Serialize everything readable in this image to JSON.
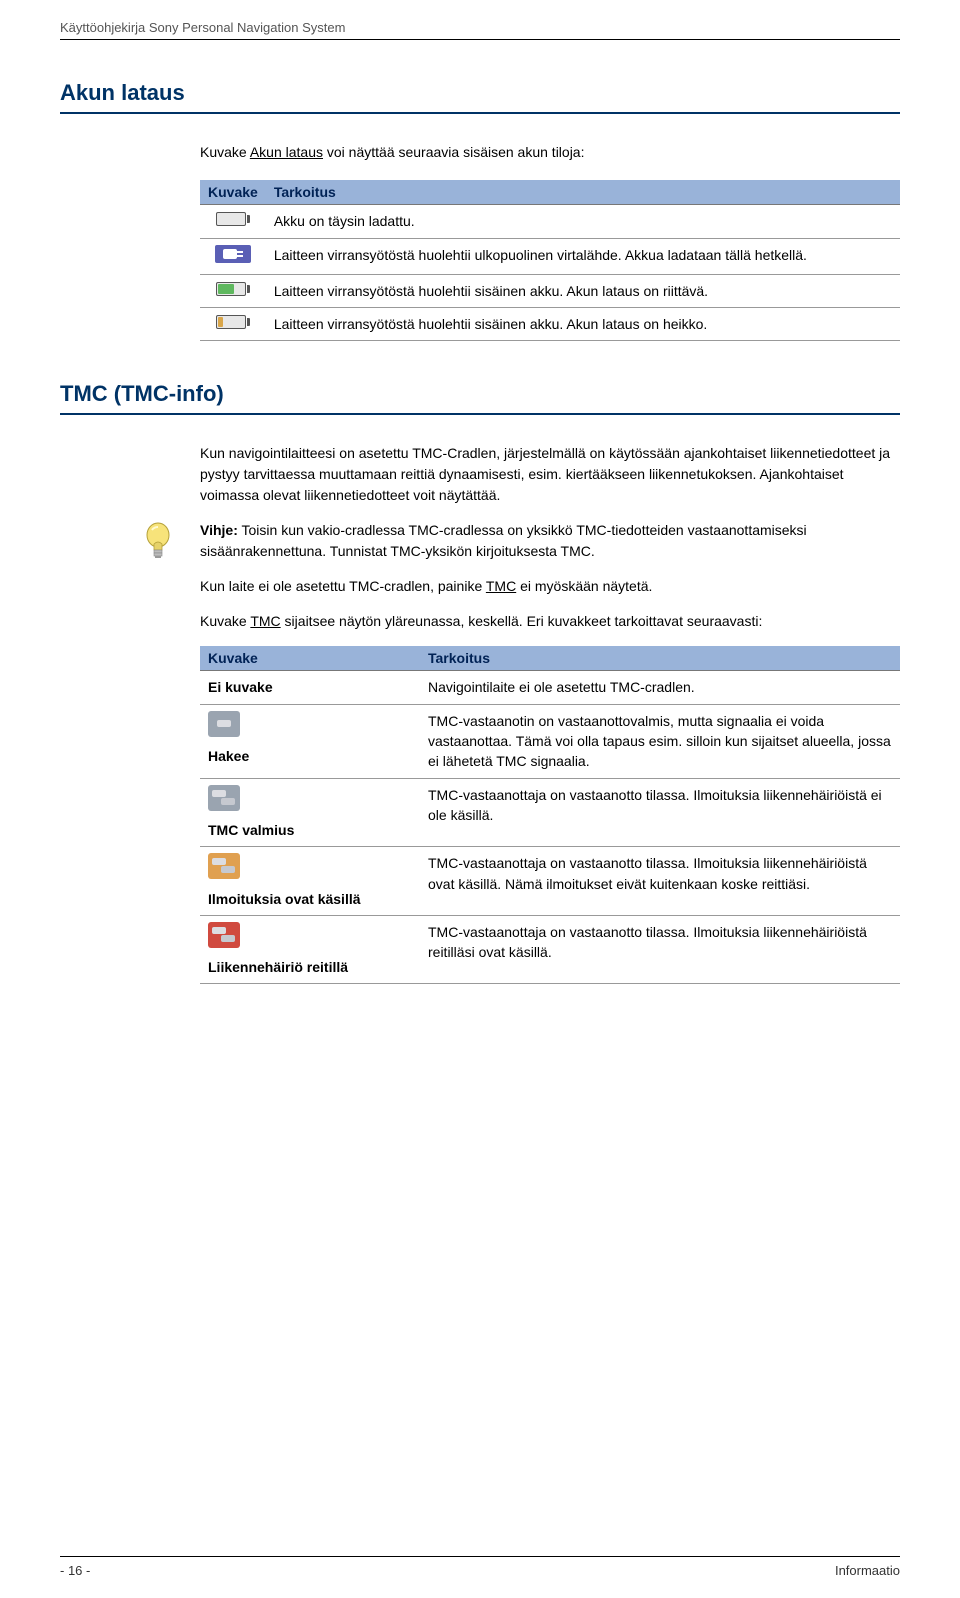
{
  "header": {
    "text": "Käyttöohjekirja Sony Personal Navigation System"
  },
  "section1": {
    "title": "Akun lataus",
    "intro_prefix": "Kuvake ",
    "intro_underlined": "Akun lataus",
    "intro_suffix": " voi näyttää seuraavia sisäisen akun tiloja:",
    "col1": "Kuvake",
    "col2": "Tarkoitus",
    "rows": [
      {
        "kind": "battery",
        "fill_pct": 100,
        "fill_color": "#e8e8e8",
        "text": "Akku on täysin ladattu."
      },
      {
        "kind": "plug",
        "text": "Laitteen virransyötöstä huolehtii ulkopuolinen virtalähde. Akkua ladataan tällä hetkellä."
      },
      {
        "kind": "battery",
        "fill_pct": 60,
        "fill_color": "#5fb85f",
        "text": "Laitteen virransyötöstä huolehtii sisäinen akku. Akun lataus on riittävä."
      },
      {
        "kind": "battery",
        "fill_pct": 20,
        "fill_color": "#d9a64a",
        "text": "Laitteen virransyötöstä huolehtii sisäinen akku. Akun lataus on heikko."
      }
    ]
  },
  "section2": {
    "title": "TMC (TMC-info)",
    "para1": "Kun navigointilaitteesi on asetettu TMC-Cradlen, järjestelmällä on käytössään ajankohtaiset liikennetiedotteet ja pystyy tarvittaessa muuttamaan reittiä dynaamisesti, esim. kiertääkseen liikennetukoksen. Ajankohtaiset voimassa olevat liikennetiedotteet voit näytättää.",
    "vihje_label": "Vihje:",
    "vihje_text": " Toisin kun vakio-cradlessa TMC-cradlessa on yksikkö TMC-tiedotteiden vastaanottamiseksi sisäänrakennettuna. Tunnistat TMC-yksikön kirjoituksesta TMC.",
    "para2_prefix": "Kun laite ei ole asetettu TMC-cradlen, painike ",
    "para2_underlined": "TMC",
    "para2_suffix": " ei myöskään näytetä.",
    "para3_prefix": "Kuvake ",
    "para3_underlined": "TMC",
    "para3_suffix": " sijaitsee näytön yläreunassa, keskellä. Eri kuvakkeet tarkoittavat seuraavasti:",
    "col1": "Kuvake",
    "col2": "Tarkoitus",
    "rows": [
      {
        "label": "Ei kuvake",
        "icon": null,
        "text": "Navigointilaite ei ole asetettu TMC-cradlen."
      },
      {
        "label": "Hakee",
        "icon_bg": "#9aa4b0",
        "car_count": 1,
        "text": "TMC-vastaanotin on vastaanottovalmis, mutta signaalia ei voida vastaanottaa. Tämä voi olla tapaus esim. silloin kun sijaitset alueella, jossa ei lähetetä TMC signaalia."
      },
      {
        "label": "TMC valmius",
        "icon_bg": "#9aa4b0",
        "car_count": 2,
        "text": "TMC-vastaanottaja on vastaanotto tilassa. Ilmoituksia liikennehäiriöistä ei ole käsillä."
      },
      {
        "label": "Ilmoituksia ovat käsillä",
        "icon_bg": "#e0a050",
        "car_count": 2,
        "text": "TMC-vastaanottaja on vastaanotto tilassa. Ilmoituksia liikennehäiriöistä ovat käsillä. Nämä ilmoitukset eivät kuitenkaan koske reittiäsi."
      },
      {
        "label": "Liikennehäiriö reitillä",
        "icon_bg": "#d04a3f",
        "car_count": 2,
        "text": "TMC-vastaanottaja on vastaanotto tilassa. Ilmoituksia liikennehäiriöistä reitilläsi ovat käsillä."
      }
    ]
  },
  "footer": {
    "left": "- 16 -",
    "right": "Informaatio"
  },
  "colors": {
    "heading": "#003366",
    "th_bg": "#99b3d9",
    "th_fg": "#002255",
    "row_border": "#999999"
  }
}
